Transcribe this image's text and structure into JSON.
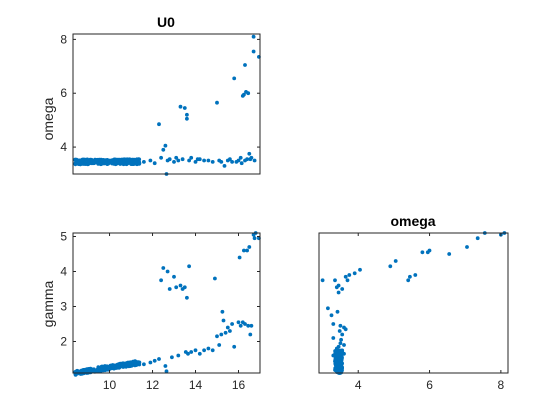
{
  "chart_data": [
    {
      "type": "scatter",
      "title": "U0",
      "xlabel": "",
      "ylabel": "omega",
      "xlim": [
        8.3,
        17.0
      ],
      "ylim": [
        3.0,
        8.2
      ],
      "xticks": [],
      "yticks": [
        4,
        6,
        8
      ],
      "marker_color": "#0072BD",
      "cluster": {
        "x_range": [
          8.4,
          11.4
        ],
        "y_range": [
          3.36,
          3.55
        ],
        "count": 260
      },
      "points": [
        [
          11.6,
          3.45
        ],
        [
          11.9,
          3.5
        ],
        [
          12.1,
          3.4
        ],
        [
          12.3,
          4.85
        ],
        [
          12.4,
          3.6
        ],
        [
          12.5,
          3.9
        ],
        [
          12.6,
          4.05
        ],
        [
          12.65,
          3.0
        ],
        [
          12.7,
          3.5
        ],
        [
          12.8,
          3.55
        ],
        [
          13.0,
          3.45
        ],
        [
          13.1,
          3.6
        ],
        [
          13.2,
          3.5
        ],
        [
          13.3,
          5.5
        ],
        [
          13.4,
          3.55
        ],
        [
          13.5,
          5.45
        ],
        [
          13.6,
          5.2
        ],
        [
          13.6,
          5.05
        ],
        [
          13.7,
          3.5
        ],
        [
          13.8,
          3.6
        ],
        [
          14.0,
          3.45
        ],
        [
          14.1,
          3.55
        ],
        [
          14.2,
          3.55
        ],
        [
          14.4,
          3.5
        ],
        [
          14.6,
          3.5
        ],
        [
          14.8,
          3.45
        ],
        [
          15.0,
          5.65
        ],
        [
          15.1,
          3.5
        ],
        [
          15.2,
          3.45
        ],
        [
          15.35,
          3.3
        ],
        [
          15.5,
          3.5
        ],
        [
          15.6,
          3.55
        ],
        [
          15.7,
          3.45
        ],
        [
          15.8,
          6.55
        ],
        [
          15.9,
          3.45
        ],
        [
          16.0,
          3.5
        ],
        [
          16.1,
          3.6
        ],
        [
          16.15,
          3.4
        ],
        [
          16.25,
          5.95
        ],
        [
          16.3,
          7.05
        ],
        [
          16.3,
          3.5
        ],
        [
          16.4,
          3.55
        ],
        [
          16.45,
          6.0
        ],
        [
          16.5,
          3.75
        ],
        [
          16.55,
          3.55
        ],
        [
          16.6,
          3.6
        ],
        [
          16.7,
          8.1
        ],
        [
          16.7,
          7.55
        ],
        [
          16.75,
          3.5
        ],
        [
          16.95,
          7.35
        ],
        [
          16.2,
          5.9
        ],
        [
          16.35,
          6.05
        ]
      ]
    },
    {
      "type": "scatter",
      "title": "",
      "xlabel": "",
      "ylabel": "gamma",
      "xlim": [
        8.3,
        17.0
      ],
      "ylim": [
        1.1,
        5.1
      ],
      "xticks": [
        10,
        12,
        14,
        16
      ],
      "yticks": [
        2,
        3,
        4,
        5
      ],
      "marker_color": "#0072BD",
      "cluster": {
        "x_range": [
          8.4,
          11.4
        ],
        "y_start": 1.1,
        "y_end": 1.4,
        "count": 260
      },
      "points": [
        [
          11.6,
          1.35
        ],
        [
          11.9,
          1.4
        ],
        [
          12.1,
          1.45
        ],
        [
          12.3,
          1.5
        ],
        [
          12.4,
          3.75
        ],
        [
          12.5,
          4.1
        ],
        [
          12.6,
          1.3
        ],
        [
          12.65,
          1.15
        ],
        [
          12.7,
          4.0
        ],
        [
          12.8,
          3.5
        ],
        [
          12.9,
          1.55
        ],
        [
          13.0,
          3.85
        ],
        [
          13.1,
          3.55
        ],
        [
          13.2,
          1.6
        ],
        [
          13.3,
          3.6
        ],
        [
          13.4,
          3.5
        ],
        [
          13.5,
          3.55
        ],
        [
          13.55,
          1.7
        ],
        [
          13.6,
          3.25
        ],
        [
          13.65,
          1.65
        ],
        [
          13.7,
          4.15
        ],
        [
          13.8,
          1.7
        ],
        [
          14.0,
          1.75
        ],
        [
          14.2,
          1.65
        ],
        [
          14.4,
          1.75
        ],
        [
          14.6,
          1.8
        ],
        [
          14.8,
          1.75
        ],
        [
          14.9,
          3.8
        ],
        [
          15.0,
          2.15
        ],
        [
          15.1,
          1.9
        ],
        [
          15.2,
          2.2
        ],
        [
          15.25,
          2.85
        ],
        [
          15.3,
          2.6
        ],
        [
          15.4,
          2.25
        ],
        [
          15.5,
          2.4
        ],
        [
          15.6,
          2.3
        ],
        [
          15.7,
          2.5
        ],
        [
          15.8,
          1.85
        ],
        [
          16.0,
          2.55
        ],
        [
          16.05,
          4.4
        ],
        [
          16.1,
          2.45
        ],
        [
          16.2,
          2.55
        ],
        [
          16.25,
          4.6
        ],
        [
          16.3,
          2.5
        ],
        [
          16.4,
          4.6
        ],
        [
          16.45,
          2.45
        ],
        [
          16.5,
          4.7
        ],
        [
          16.55,
          2.2
        ],
        [
          16.6,
          2.45
        ],
        [
          16.7,
          5.05
        ],
        [
          16.75,
          4.95
        ],
        [
          16.8,
          5.1
        ],
        [
          16.95,
          4.95
        ]
      ]
    },
    {
      "type": "scatter",
      "title": "omega",
      "xlabel": "",
      "ylabel": "",
      "xlim": [
        2.9,
        8.2
      ],
      "ylim": [
        1.1,
        5.1
      ],
      "xticks": [
        4,
        6,
        8
      ],
      "yticks": [],
      "marker_color": "#0072BD",
      "cluster": {
        "x_range": [
          3.35,
          3.55
        ],
        "y_range": [
          1.1,
          1.75
        ],
        "count": 160
      },
      "points": [
        [
          3.0,
          3.75
        ],
        [
          3.15,
          2.95
        ],
        [
          3.25,
          2.75
        ],
        [
          3.3,
          2.5
        ],
        [
          3.3,
          2.1
        ],
        [
          3.35,
          3.75
        ],
        [
          3.4,
          3.55
        ],
        [
          3.42,
          2.85
        ],
        [
          3.45,
          3.6
        ],
        [
          3.45,
          3.4
        ],
        [
          3.48,
          2.3
        ],
        [
          3.5,
          2.45
        ],
        [
          3.52,
          2.05
        ],
        [
          3.55,
          3.5
        ],
        [
          3.55,
          2.2
        ],
        [
          3.6,
          2.4
        ],
        [
          3.6,
          1.9
        ],
        [
          3.65,
          3.85
        ],
        [
          3.65,
          2.35
        ],
        [
          3.7,
          3.75
        ],
        [
          3.45,
          1.85
        ],
        [
          3.5,
          1.95
        ],
        [
          3.4,
          1.8
        ],
        [
          3.55,
          1.7
        ],
        [
          3.75,
          3.9
        ],
        [
          3.9,
          3.95
        ],
        [
          4.05,
          4.05
        ],
        [
          4.9,
          4.15
        ],
        [
          5.05,
          4.3
        ],
        [
          5.4,
          3.75
        ],
        [
          5.45,
          3.85
        ],
        [
          5.6,
          3.9
        ],
        [
          5.8,
          4.55
        ],
        [
          5.95,
          4.55
        ],
        [
          6.0,
          4.6
        ],
        [
          6.55,
          4.5
        ],
        [
          7.05,
          4.7
        ],
        [
          7.35,
          4.95
        ],
        [
          7.55,
          5.1
        ],
        [
          8.1,
          5.1
        ],
        [
          8.0,
          5.05
        ],
        [
          3.3,
          1.6
        ],
        [
          3.6,
          1.65
        ]
      ]
    }
  ]
}
